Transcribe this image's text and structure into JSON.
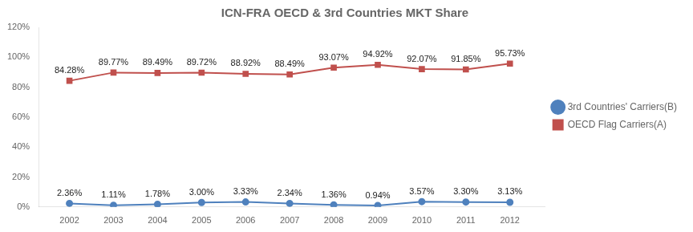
{
  "chart_data": {
    "type": "line",
    "title": "ICN-FRA OECD & 3rd Countries MKT Share",
    "x": [
      2002,
      2003,
      2004,
      2005,
      2006,
      2007,
      2008,
      2009,
      2010,
      2011,
      2012
    ],
    "xlim": [
      2001.3,
      2012.8
    ],
    "xticks": [
      2002,
      2003,
      2004,
      2005,
      2006,
      2007,
      2008,
      2009,
      2010,
      2011,
      2012
    ],
    "ylim": [
      0,
      120
    ],
    "yticks": [
      {
        "value": 0,
        "label": "0%"
      },
      {
        "value": 20,
        "label": "20%"
      },
      {
        "value": 40,
        "label": "40%"
      },
      {
        "value": 60,
        "label": "60%"
      },
      {
        "value": 80,
        "label": "80%"
      },
      {
        "value": 100,
        "label": "100%"
      },
      {
        "value": 120,
        "label": "120%"
      }
    ],
    "grid": false,
    "legend": "right",
    "data_labels": true,
    "series": [
      {
        "name": "3rd Countries' Carriers(B)",
        "color": "#4F81BD",
        "marker": "circle",
        "values": [
          2.36,
          1.11,
          1.78,
          3.0,
          3.33,
          2.34,
          1.36,
          0.94,
          3.57,
          3.3,
          3.13
        ],
        "value_labels": [
          "2.36%",
          "1.11%",
          "1.78%",
          "3.00%",
          "3.33%",
          "2.34%",
          "1.36%",
          "0.94%",
          "3.57%",
          "3.30%",
          "3.13%"
        ]
      },
      {
        "name": "OECD Flag Carriers(A)",
        "color": "#C0504D",
        "marker": "square",
        "values": [
          84.28,
          89.77,
          89.49,
          89.72,
          88.92,
          88.49,
          93.07,
          94.92,
          92.07,
          91.85,
          95.73
        ],
        "value_labels": [
          "84.28%",
          "89.77%",
          "89.49%",
          "89.72%",
          "88.92%",
          "88.49%",
          "93.07%",
          "94.92%",
          "92.07%",
          "91.85%",
          "95.73%"
        ]
      }
    ]
  }
}
